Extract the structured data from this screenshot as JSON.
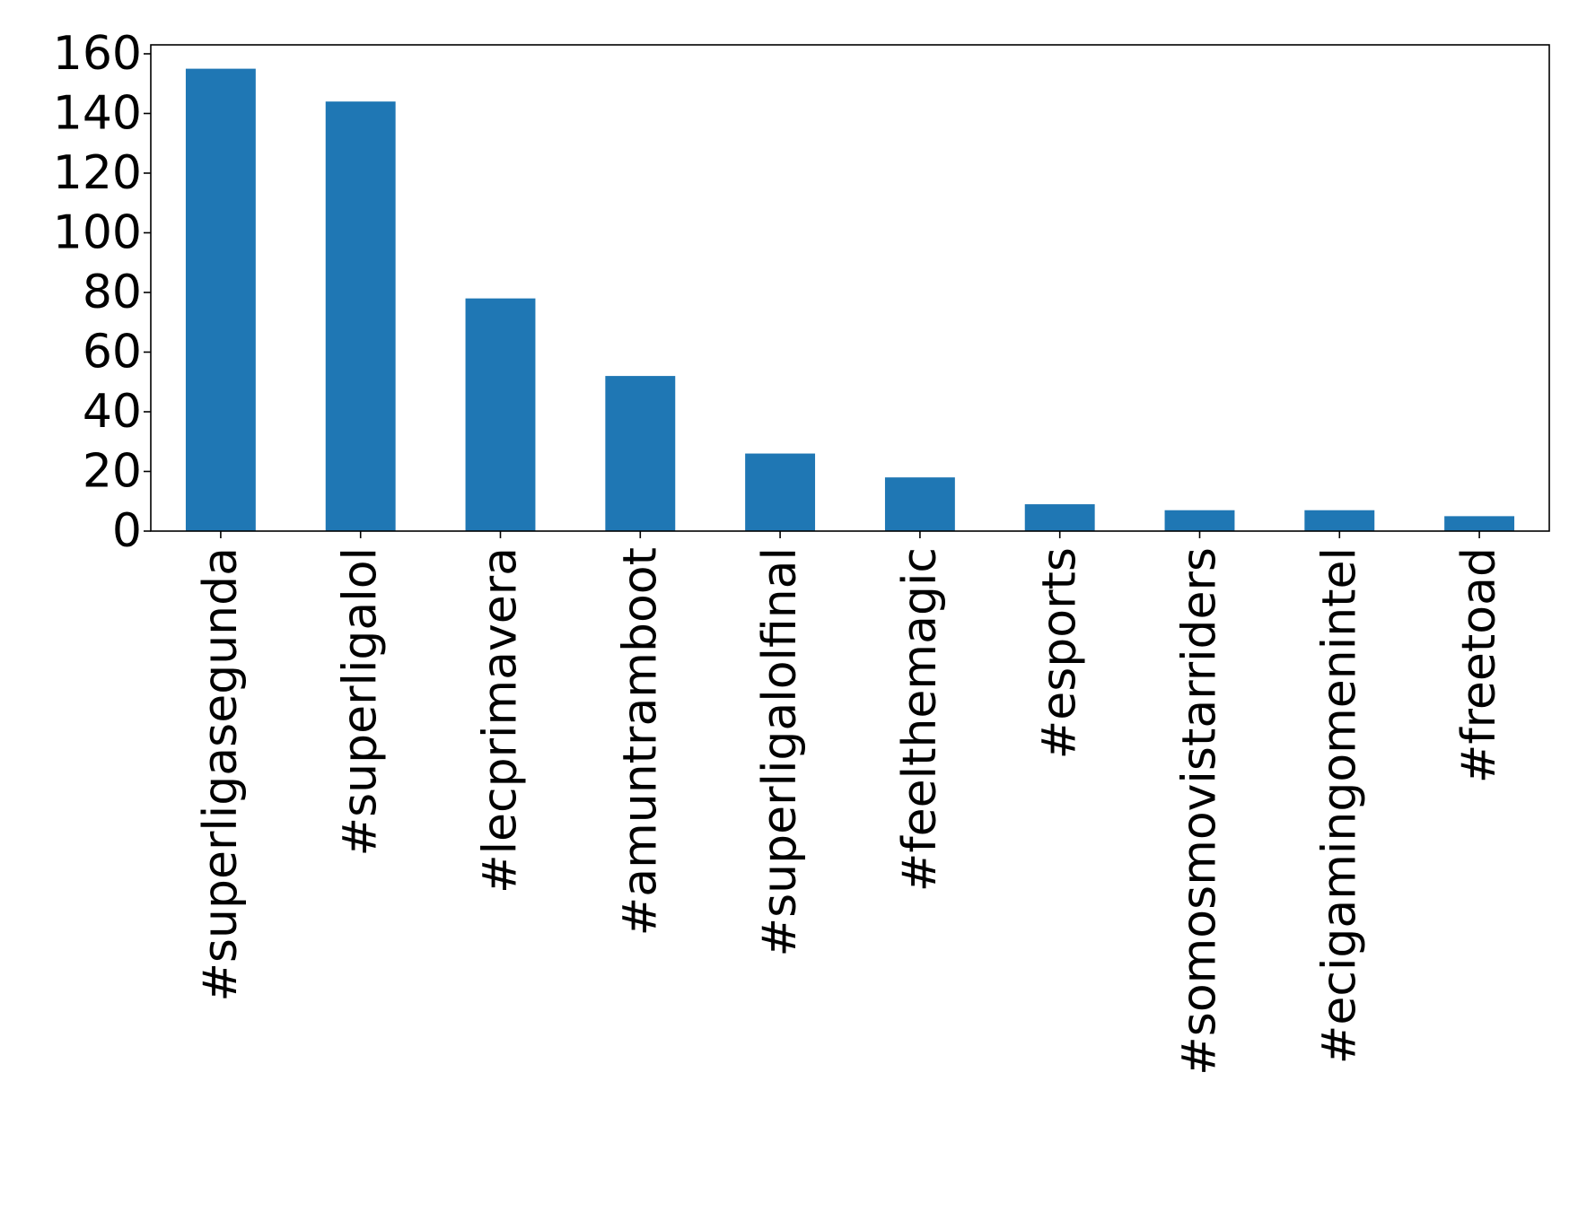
{
  "chart_data": {
    "type": "bar",
    "title": "",
    "xlabel": "",
    "ylabel": "",
    "categories": [
      "#superligasegunda",
      "#superligalol",
      "#lecprimavera",
      "#amuntramboot",
      "#superligalolfinal",
      "#feelthemagic",
      "#esports",
      "#somosmovistarriders",
      "#ecigamingomenintel",
      "#freetoad"
    ],
    "series": [
      {
        "values": [
          155,
          144,
          78,
          52,
          26,
          18,
          9,
          7,
          7,
          5
        ],
        "color": "#1f77b4"
      }
    ],
    "ylim": [
      0,
      163
    ],
    "yticks": [
      "0",
      "20",
      "40",
      "60",
      "80",
      "100",
      "120",
      "140",
      "160"
    ],
    "grid": false,
    "legend": "none"
  }
}
